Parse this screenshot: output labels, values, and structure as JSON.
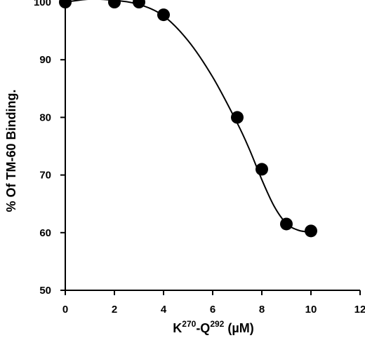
{
  "chart_data": {
    "type": "scatter",
    "title": "",
    "xlabel": {
      "main": "K",
      "sup1": "270",
      "mid": "-Q",
      "sup2": "292",
      "unit": " (µM)"
    },
    "ylabel": "% Of TM-60 Binding.",
    "xlim": [
      0,
      12
    ],
    "ylim": [
      50,
      100
    ],
    "x_ticks": [
      0,
      2,
      4,
      6,
      8,
      10,
      12
    ],
    "y_ticks": [
      50,
      60,
      70,
      80,
      90,
      100
    ],
    "grid": false,
    "legend": "none",
    "series": [
      {
        "name": "",
        "marker": "filled-circle",
        "color": "#000000",
        "points": [
          {
            "x": 0,
            "y": 100
          },
          {
            "x": 2,
            "y": 100
          },
          {
            "x": 3,
            "y": 100
          },
          {
            "x": 4,
            "y": 97.8
          },
          {
            "x": 7,
            "y": 80
          },
          {
            "x": 8,
            "y": 71
          },
          {
            "x": 9,
            "y": 61.5
          },
          {
            "x": 10,
            "y": 60.3
          }
        ]
      }
    ],
    "fit_curve": {
      "color": "#000000",
      "points": [
        {
          "x": 0,
          "y": 100
        },
        {
          "x": 1,
          "y": 100.5
        },
        {
          "x": 2,
          "y": 100.3
        },
        {
          "x": 3,
          "y": 99.6
        },
        {
          "x": 4,
          "y": 97.6
        },
        {
          "x": 5,
          "y": 93.3
        },
        {
          "x": 6,
          "y": 87
        },
        {
          "x": 7,
          "y": 79
        },
        {
          "x": 7.5,
          "y": 74.4
        },
        {
          "x": 8,
          "y": 69.2
        },
        {
          "x": 8.5,
          "y": 64.6
        },
        {
          "x": 9,
          "y": 61.6
        },
        {
          "x": 9.5,
          "y": 60.4
        },
        {
          "x": 10,
          "y": 60.1
        }
      ]
    }
  }
}
